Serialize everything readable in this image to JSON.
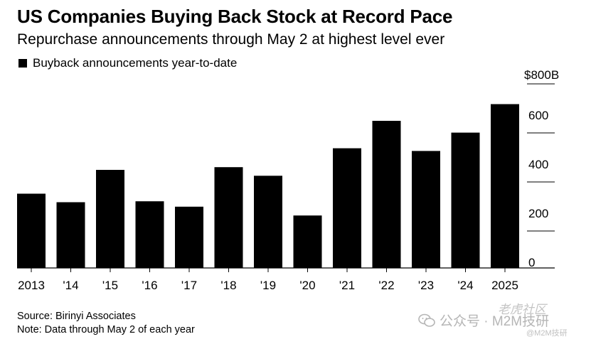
{
  "chart_data": {
    "type": "bar",
    "title": "US Companies Buying Back Stock at Record Pace",
    "subtitle": "Repurchase announcements through May 2 at highest level ever",
    "legend": [
      "Buyback announcements year-to-date"
    ],
    "categories": [
      "2013",
      "'14",
      "'15",
      "'16",
      "'17",
      "'18",
      "'19",
      "'20",
      "'21",
      "'22",
      "'23",
      "'24",
      "2025"
    ],
    "values": [
      303,
      268,
      400,
      272,
      250,
      411,
      376,
      214,
      488,
      600,
      477,
      552,
      668
    ],
    "y_ticks": [
      0,
      200,
      400,
      600
    ],
    "y_ticks_display": [
      "0",
      "200",
      "400",
      "600"
    ],
    "y_top_label": "$800B",
    "ylim": [
      0,
      800
    ],
    "grid": false,
    "legend_position": "top-left",
    "bar_color": "#000000"
  },
  "footer": {
    "source": "Source: Birinyi Associates",
    "note": "Note: Data through May 2 of each year"
  },
  "watermark": {
    "text": "公众号 · M2M技研",
    "corner": "老虎社区",
    "handle": "@M2M技研"
  }
}
